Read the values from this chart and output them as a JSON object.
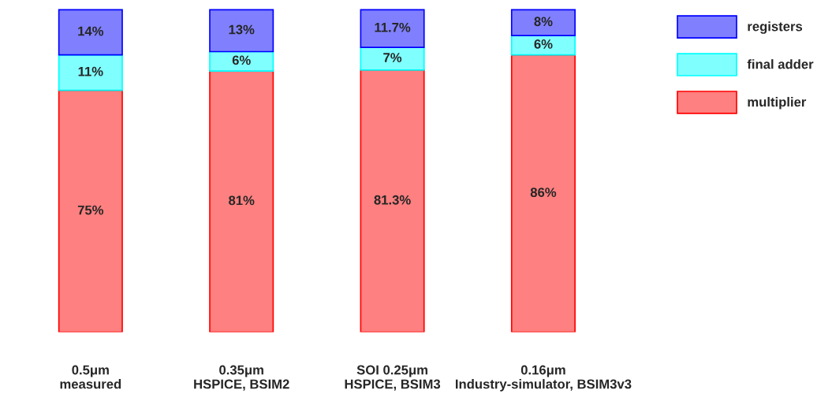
{
  "chart_data": {
    "type": "bar",
    "stacked": true,
    "legend": "top right",
    "tick_labels": "x",
    "categories": [
      "0.5μm\nmeasured",
      "0.35μm\nHSPICE, BSIM2",
      "SOI 0.25μm\nHSPICE, BSIM3",
      "0.16μm\nIndustry-simulator, BSIM3v3"
    ],
    "series": [
      {
        "name": "multiplier",
        "color": "#ff8080",
        "values": [
          75,
          81,
          81.3,
          86
        ],
        "value_labels": [
          "75%",
          "81%",
          "81.3%",
          "86%"
        ]
      },
      {
        "name": "final adder",
        "color": "#80ffff",
        "values": [
          11,
          6,
          7,
          6
        ],
        "value_labels": [
          "11%",
          "6%",
          "7%",
          "6%"
        ]
      },
      {
        "name": "registers",
        "color": "#8080ff",
        "values": [
          14,
          13,
          11.7,
          8
        ],
        "value_labels": [
          "14%",
          "13%",
          "11.7%",
          "8%"
        ]
      }
    ]
  }
}
